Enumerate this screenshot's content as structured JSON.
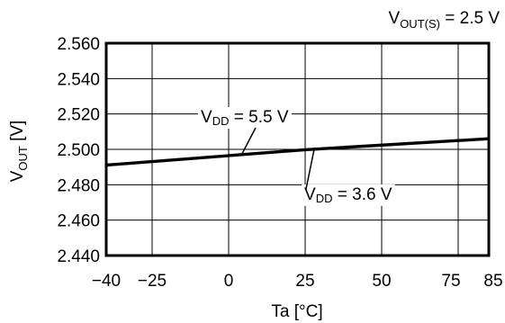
{
  "chart_data": {
    "type": "line",
    "condition": {
      "main": "V",
      "sub": "OUT(S)",
      "rest": " = 2.5 V"
    },
    "ylabel": {
      "main": "V",
      "sub": "OUT",
      "rest": " [V]"
    },
    "xlabel": "Ta [°C]",
    "x_ticks": [
      -40,
      -25,
      0,
      25,
      50,
      75,
      85
    ],
    "x_tick_labels": [
      "−40",
      "−25",
      "0",
      "25",
      "50",
      "75",
      "85"
    ],
    "y_ticks": [
      2.44,
      2.46,
      2.48,
      2.5,
      2.52,
      2.54,
      2.56
    ],
    "y_tick_labels": [
      "2.440",
      "2.460",
      "2.480",
      "2.500",
      "2.520",
      "2.540",
      "2.560"
    ],
    "xlim": [
      -40,
      85
    ],
    "ylim": [
      2.44,
      2.56
    ],
    "grid": true,
    "series": [
      {
        "name": "VDD = 5.5 V",
        "x": [
          -40,
          25,
          85
        ],
        "y": [
          2.4912,
          2.4999,
          2.5061
        ]
      },
      {
        "name": "VDD = 3.6 V",
        "x": [
          -40,
          25,
          85
        ],
        "y": [
          2.491,
          2.4997,
          2.5059
        ]
      }
    ],
    "annotations": [
      {
        "main": "V",
        "sub": "DD",
        "rest": " = 5.5 V",
        "series": 0
      },
      {
        "main": "V",
        "sub": "DD",
        "rest": " = 3.6 V",
        "series": 1
      }
    ]
  }
}
